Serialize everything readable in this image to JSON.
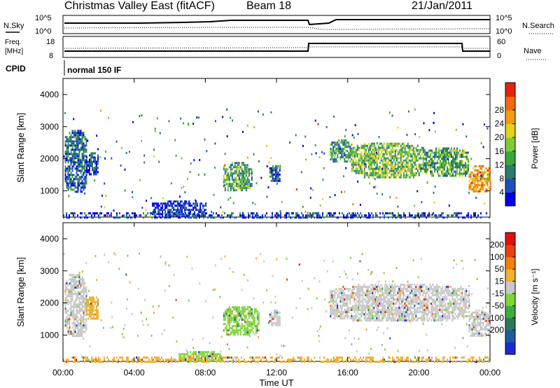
{
  "header": {
    "station": "Christmas Valley East (fitACF)",
    "beam": "Beam 18",
    "date": "21/Jan/2011"
  },
  "noise_panel": {
    "left_label": "N.Sky",
    "left_ticks": [
      "10^5",
      "10^0"
    ],
    "right_label": "N.Search",
    "right_ticks": [
      "10^5",
      "10^0"
    ]
  },
  "freq_panel": {
    "left_label_1": "Freq.",
    "left_label_2": "[MHz]",
    "left_ticks": [
      "18",
      "8"
    ],
    "right_label": "Nave",
    "right_ticks": [
      "60",
      "0"
    ],
    "cpid_label": "CPID",
    "cpid_value": "normal 150 IF"
  },
  "chart_data": [
    {
      "type": "heatmap",
      "name": "power",
      "ylabel": "Slant Range [km]",
      "yticks": [
        1000,
        2000,
        3000,
        4000
      ],
      "ylim": [
        180,
        4500
      ],
      "xlim": [
        0,
        24
      ],
      "colorbar": {
        "label": "Power [dB]",
        "ticks": [
          "4",
          "8",
          "12",
          "16",
          "20",
          "24",
          "28"
        ],
        "colors": [
          "#0000e0",
          "#1f4fbf",
          "#2f7a6a",
          "#3aa63a",
          "#7fcc3a",
          "#e3d21c",
          "#f39c12",
          "#f26a0f",
          "#e32310"
        ]
      },
      "regions": [
        {
          "t0": 0.1,
          "t1": 1.3,
          "r0": 950,
          "r1": 2900,
          "level": 0.22
        },
        {
          "t0": 1.3,
          "t1": 2.0,
          "r0": 1500,
          "r1": 2200,
          "level": 0.15
        },
        {
          "t0": 5.0,
          "t1": 8.0,
          "r0": 180,
          "r1": 700,
          "level": 0.1
        },
        {
          "t0": 9.0,
          "t1": 10.6,
          "r0": 1000,
          "r1": 1900,
          "level": 0.38
        },
        {
          "t0": 11.6,
          "t1": 12.2,
          "r0": 1300,
          "r1": 1800,
          "level": 0.2
        },
        {
          "t0": 15.0,
          "t1": 16.2,
          "r0": 1900,
          "r1": 2600,
          "level": 0.32
        },
        {
          "t0": 16.2,
          "t1": 20.3,
          "r0": 1450,
          "r1": 2500,
          "level": 0.45
        },
        {
          "t0": 20.3,
          "t1": 22.8,
          "r0": 1450,
          "r1": 2350,
          "level": 0.4
        },
        {
          "t0": 22.8,
          "t1": 24.0,
          "r0": 950,
          "r1": 1800,
          "level": 0.72
        }
      ],
      "bottom_band": {
        "t0": 0.0,
        "t1": 24.0,
        "r0": 180,
        "r1": 330,
        "level": 0.15
      }
    },
    {
      "type": "heatmap",
      "name": "velocity",
      "ylabel": "Slant Range [km]",
      "yticks": [
        1000,
        2000,
        3000,
        4000
      ],
      "ylim": [
        180,
        4500
      ],
      "xlim": [
        0,
        24
      ],
      "xticks": [
        "00:00",
        "04:00",
        "08:00",
        "12:00",
        "16:00",
        "20:00",
        "00:00"
      ],
      "xlabel": "Time UT",
      "colorbar": {
        "label": "Velocity [m s⁻¹]",
        "ticks": [
          "200",
          "100",
          "50",
          "15",
          "-15",
          "-50",
          "-100",
          "-200"
        ],
        "colors": [
          "#1a2bd4",
          "#1f5aa0",
          "#2a7a5a",
          "#3faa3f",
          "#7fd43a",
          "#c8c8c8",
          "#f0b030",
          "#f08010",
          "#e84010",
          "#e01010"
        ]
      },
      "regions": [
        {
          "t0": 0.1,
          "t1": 1.3,
          "r0": 950,
          "r1": 2900,
          "color": "#c8c8c8"
        },
        {
          "t0": 1.3,
          "t1": 2.0,
          "r0": 1500,
          "r1": 2200,
          "color": "#f0b030"
        },
        {
          "t0": 6.5,
          "t1": 9.0,
          "r0": 180,
          "r1": 500,
          "color": "#7fd43a"
        },
        {
          "t0": 9.0,
          "t1": 11.0,
          "r0": 1000,
          "r1": 1900,
          "color": "#7fd43a"
        },
        {
          "t0": 11.6,
          "t1": 12.2,
          "r0": 1300,
          "r1": 1800,
          "color": "#c8c8c8"
        },
        {
          "t0": 15.0,
          "t1": 22.8,
          "r0": 1450,
          "r1": 2600,
          "color": "#c8c8c8"
        },
        {
          "t0": 22.8,
          "t1": 24.0,
          "r0": 950,
          "r1": 1800,
          "color": "#c8c8c8"
        }
      ],
      "bottom_band": {
        "t0": 0.0,
        "t1": 24.0,
        "r0": 180,
        "r1": 330,
        "color": "#f0b030"
      }
    }
  ]
}
